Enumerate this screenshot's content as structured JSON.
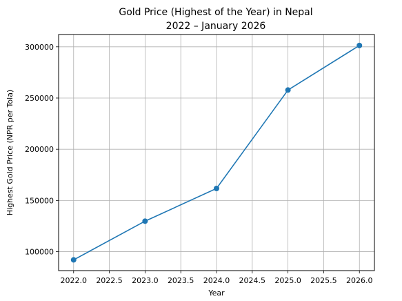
{
  "chart_data": {
    "type": "line",
    "title_line1": "Gold Price (Highest of the Year) in Nepal",
    "title_line2": "2022 – January 2026",
    "xlabel": "Year",
    "ylabel": "Highest Gold Price (NPR per Tola)",
    "x": [
      2022.0,
      2023.0,
      2024.0,
      2025.0,
      2026.0
    ],
    "series": [
      {
        "values": [
          92000,
          129800,
          161700,
          257800,
          301300
        ]
      }
    ],
    "xlim": [
      2021.79,
      2026.21
    ],
    "ylim": [
      81500,
      312000
    ],
    "xticks": [
      2022.0,
      2022.5,
      2023.0,
      2023.5,
      2024.0,
      2024.5,
      2025.0,
      2025.5,
      2026.0
    ],
    "xtick_labels": [
      "2022.0",
      "2022.5",
      "2023.0",
      "2023.5",
      "2024.0",
      "2024.5",
      "2025.0",
      "2025.5",
      "2026.0"
    ],
    "yticks": [
      100000,
      150000,
      200000,
      250000,
      300000
    ],
    "ytick_labels": [
      "100000",
      "150000",
      "200000",
      "250000",
      "300000"
    ],
    "grid": true,
    "line_color": "#1f77b4",
    "grid_color": "#b0b0b0"
  }
}
